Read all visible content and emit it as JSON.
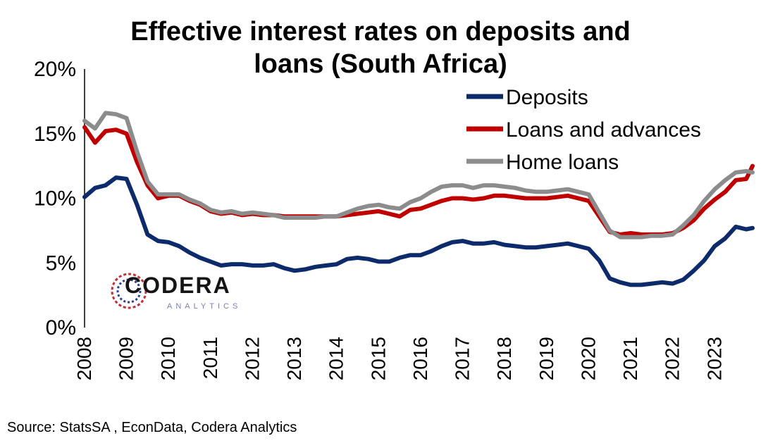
{
  "chart_data": {
    "type": "line",
    "title_line1": "Effective interest rates on deposits and",
    "title_line2": "loans (South Africa)",
    "xlabel": "",
    "ylabel": "",
    "xlim": [
      2008,
      2023.9
    ],
    "ylim": [
      0,
      20
    ],
    "y_ticks": [
      "0%",
      "5%",
      "10%",
      "15%",
      "20%"
    ],
    "x_ticks": [
      "2008",
      "2009",
      "2010",
      "2011",
      "2012",
      "2013",
      "2014",
      "2015",
      "2016",
      "2017",
      "2018",
      "2019",
      "2020",
      "2021",
      "2022",
      "2023"
    ],
    "legend_position": "top-right",
    "grid": false,
    "x": [
      2008.0,
      2008.25,
      2008.5,
      2008.75,
      2009.0,
      2009.25,
      2009.5,
      2009.75,
      2010.0,
      2010.25,
      2010.5,
      2010.75,
      2011.0,
      2011.25,
      2011.5,
      2011.75,
      2012.0,
      2012.25,
      2012.5,
      2012.75,
      2013.0,
      2013.25,
      2013.5,
      2013.75,
      2014.0,
      2014.25,
      2014.5,
      2014.75,
      2015.0,
      2015.25,
      2015.5,
      2015.75,
      2016.0,
      2016.25,
      2016.5,
      2016.75,
      2017.0,
      2017.25,
      2017.5,
      2017.75,
      2018.0,
      2018.25,
      2018.5,
      2018.75,
      2019.0,
      2019.25,
      2019.5,
      2019.75,
      2020.0,
      2020.25,
      2020.5,
      2020.75,
      2021.0,
      2021.25,
      2021.5,
      2021.75,
      2022.0,
      2022.25,
      2022.5,
      2022.75,
      2023.0,
      2023.25,
      2023.5,
      2023.75,
      2023.9
    ],
    "series": [
      {
        "name": "Deposits",
        "color": "#0d2a6b",
        "values": [
          10.1,
          10.8,
          11.0,
          11.6,
          11.5,
          9.5,
          7.2,
          6.7,
          6.6,
          6.3,
          5.8,
          5.4,
          5.1,
          4.8,
          4.9,
          4.9,
          4.8,
          4.8,
          4.9,
          4.6,
          4.4,
          4.5,
          4.7,
          4.8,
          4.9,
          5.3,
          5.4,
          5.3,
          5.1,
          5.1,
          5.4,
          5.6,
          5.6,
          5.9,
          6.3,
          6.6,
          6.7,
          6.5,
          6.5,
          6.6,
          6.4,
          6.3,
          6.2,
          6.2,
          6.3,
          6.4,
          6.5,
          6.3,
          6.1,
          5.2,
          3.8,
          3.5,
          3.3,
          3.3,
          3.4,
          3.5,
          3.4,
          3.7,
          4.4,
          5.2,
          6.3,
          6.9,
          7.8,
          7.6,
          7.7
        ]
      },
      {
        "name": "Loans and advances",
        "color": "#c00000",
        "values": [
          15.5,
          14.3,
          15.2,
          15.3,
          15.0,
          12.8,
          11.0,
          10.0,
          10.2,
          10.2,
          9.8,
          9.5,
          9.0,
          8.8,
          8.9,
          8.7,
          8.8,
          8.7,
          8.7,
          8.6,
          8.6,
          8.6,
          8.6,
          8.6,
          8.6,
          8.7,
          8.8,
          8.9,
          9.0,
          8.8,
          8.6,
          9.1,
          9.2,
          9.5,
          9.8,
          10.0,
          10.0,
          9.9,
          10.0,
          10.2,
          10.2,
          10.1,
          10.0,
          10.0,
          10.0,
          10.1,
          10.2,
          10.0,
          9.8,
          8.6,
          7.4,
          7.2,
          7.3,
          7.2,
          7.2,
          7.2,
          7.3,
          7.7,
          8.3,
          9.2,
          9.9,
          10.5,
          11.4,
          11.5,
          12.5
        ]
      },
      {
        "name": "Home loans",
        "color": "#8c8c8c",
        "values": [
          16.0,
          15.4,
          16.6,
          16.5,
          16.2,
          13.6,
          11.3,
          10.3,
          10.3,
          10.3,
          9.9,
          9.6,
          9.1,
          8.9,
          9.0,
          8.8,
          8.9,
          8.8,
          8.7,
          8.5,
          8.5,
          8.5,
          8.5,
          8.6,
          8.6,
          8.9,
          9.2,
          9.4,
          9.5,
          9.3,
          9.2,
          9.7,
          10.0,
          10.5,
          10.9,
          11.0,
          11.0,
          10.8,
          11.0,
          11.0,
          10.9,
          10.8,
          10.6,
          10.5,
          10.5,
          10.6,
          10.7,
          10.5,
          10.3,
          8.9,
          7.5,
          7.0,
          7.0,
          7.0,
          7.1,
          7.1,
          7.2,
          7.9,
          8.7,
          9.8,
          10.7,
          11.4,
          12.0,
          12.1,
          12.0
        ]
      }
    ]
  },
  "source_text": "Source: StatsSA , EconData, Codera Analytics",
  "logo": {
    "word": "CODERA",
    "sub": "ANALYTICS"
  }
}
